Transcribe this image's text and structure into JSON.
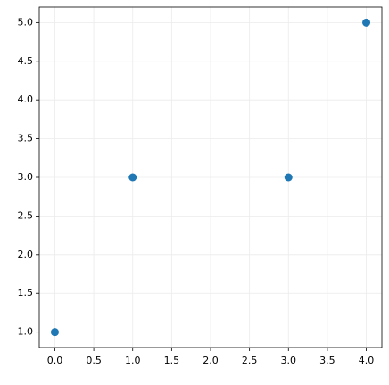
{
  "chart_data": {
    "type": "scatter",
    "x": [
      0,
      1,
      3,
      4
    ],
    "values": [
      1,
      3,
      3,
      5
    ],
    "color": "#1f77b4",
    "xlim": [
      -0.2,
      4.2
    ],
    "xticks": [
      {
        "value": 0,
        "label": "0.0"
      },
      0.5,
      {
        "value": 1,
        "label": "1.0"
      },
      1.5,
      {
        "value": 2,
        "label": "2.0"
      },
      2.5,
      {
        "value": 3,
        "label": "3.0"
      },
      3.5,
      {
        "value": 4,
        "label": "4.0"
      }
    ],
    "ylim": [
      0.8,
      5.2
    ],
    "yticks": [
      {
        "value": 1,
        "label": "1.0"
      },
      1.5,
      {
        "value": 2,
        "label": "2.0"
      },
      2.5,
      {
        "value": 3,
        "label": "3.0"
      },
      3.5,
      {
        "value": 4,
        "label": "4.0"
      },
      4.5,
      {
        "value": 5,
        "label": "5.0"
      }
    ],
    "grid": true
  }
}
